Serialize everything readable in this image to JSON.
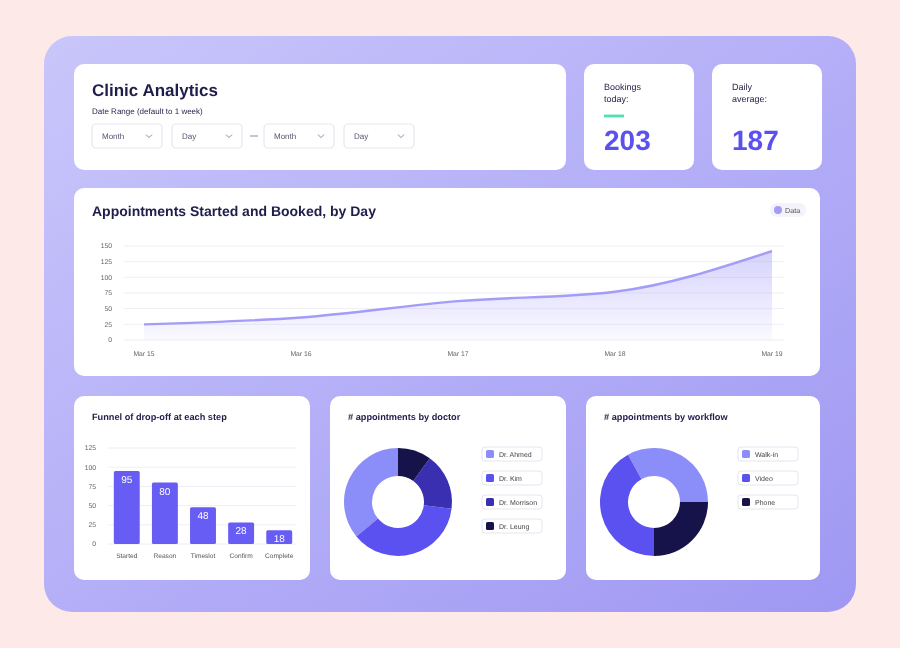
{
  "chart_data": [
    {
      "type": "other",
      "title": "Clinic Analytics",
      "subtitle": "Date Range (default to 1 week)",
      "annotations": [
        "Month",
        "Day",
        "Month",
        "Day"
      ]
    },
    {
      "type": "other",
      "title": "Bookings today:",
      "annotations": [
        "203"
      ]
    },
    {
      "type": "other",
      "title": "Daily average:",
      "annotations": [
        "187"
      ]
    },
    {
      "type": "area",
      "title": "Appointments Started and Booked, by Day",
      "categories": [
        "Mar 15",
        "Mar 16",
        "Mar 17",
        "Mar 18",
        "Mar 19"
      ],
      "series": [
        {
          "name": "Data",
          "color": "#a39cf8",
          "values": [
            25,
            36,
            62,
            77,
            142
          ]
        }
      ],
      "ylim": [
        0,
        150
      ],
      "yticks": [
        0,
        25,
        50,
        75,
        100,
        125,
        150
      ],
      "grid": "y",
      "legend": "top right"
    },
    {
      "type": "bar",
      "title": "Funnel of drop-off at each step",
      "categories": [
        "Started",
        "Reason",
        "Timeslot",
        "Confirm",
        "Complete"
      ],
      "values": [
        95,
        80,
        48,
        28,
        18
      ],
      "color": "#675cf4",
      "ylim": [
        0,
        125
      ],
      "yticks": [
        0,
        25,
        50,
        75,
        100,
        125
      ],
      "grid": "y",
      "data_labels": true
    },
    {
      "type": "donut",
      "title": "# appointments by doctor",
      "categories": [
        "Dr. Ahmed",
        "Dr. Kim",
        "Dr. Morrison",
        "Dr. Leung"
      ],
      "values": [
        36,
        37,
        17,
        10
      ],
      "colors": [
        "#8b8ef8",
        "#5b50f0",
        "#3a2fb0",
        "#16124a"
      ],
      "legend": "right"
    },
    {
      "type": "donut",
      "title": "# appointments by workflow",
      "categories": [
        "Walk-in",
        "Video",
        "Phone"
      ],
      "values": [
        33,
        42,
        25
      ],
      "colors": [
        "#8b8ef8",
        "#5b50f0",
        "#16124a"
      ],
      "legend": "right"
    }
  ]
}
